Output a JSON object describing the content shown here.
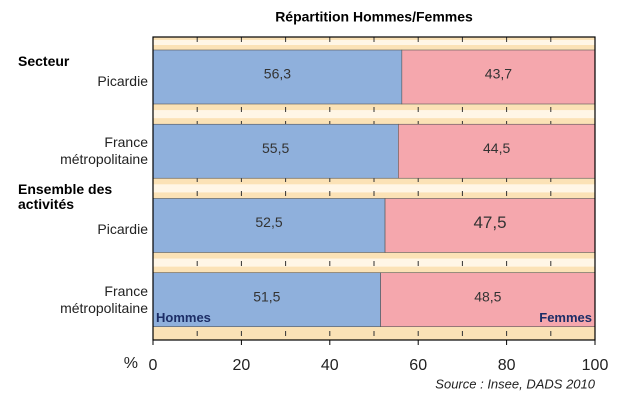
{
  "chart_data": {
    "type": "stacked_barh",
    "title": "Répartition Hommes/Femmes",
    "group_labels": [
      "Secteur",
      "Ensemble des activités"
    ],
    "categories": [
      "Picardie",
      "France métropolitaine",
      "Picardie",
      "France métropolitaine"
    ],
    "series": [
      {
        "name": "Hommes",
        "color": "#8fb0dc",
        "values": [
          56.3,
          55.5,
          52.5,
          51.5
        ],
        "value_labels": [
          "56,3",
          "55,5",
          "52,5",
          "51,5"
        ]
      },
      {
        "name": "Femmes",
        "color": "#f5a7ad",
        "values": [
          43.7,
          44.5,
          47.5,
          48.5
        ],
        "value_labels": [
          "43,7",
          "44,5",
          "47,5",
          "48,5"
        ]
      }
    ],
    "xlabel": "%",
    "xlim": [
      0,
      100
    ],
    "xticks": [
      0,
      20,
      40,
      60,
      80,
      100
    ],
    "xgrid": [
      10,
      20,
      30,
      40,
      50,
      60,
      70,
      80,
      90
    ],
    "source": "Source : Insee, DADS 2010"
  }
}
